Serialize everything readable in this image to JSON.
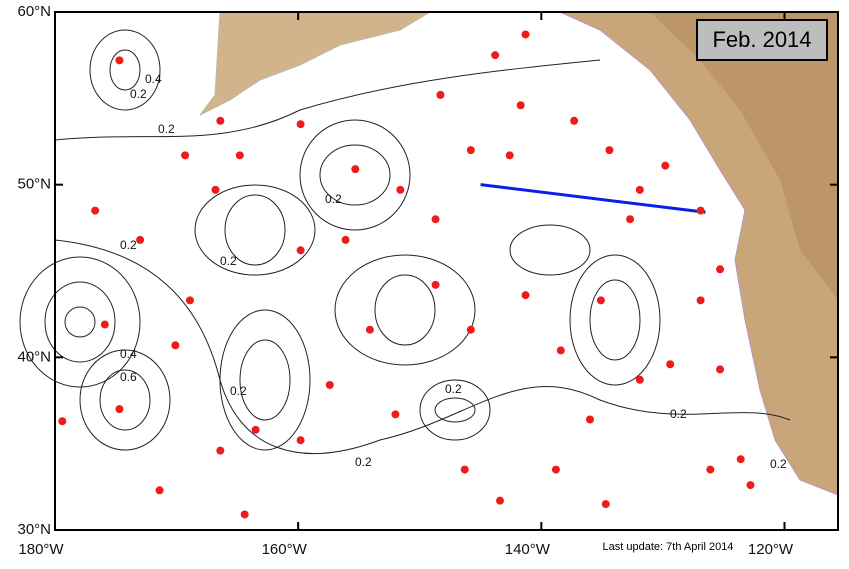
{
  "map": {
    "title": "Feb. 2014",
    "footer": "Last update: 7th April 2014",
    "xlim": [
      -180,
      -115.6
    ],
    "ylim": [
      30,
      60
    ],
    "xticks": [
      {
        "value": -180,
        "label": "180°W"
      },
      {
        "value": -160,
        "label": "160°W"
      },
      {
        "value": -140,
        "label": "140°W"
      },
      {
        "value": -120,
        "label": "120°W"
      }
    ],
    "yticks": [
      {
        "value": 30,
        "label": "30°N"
      },
      {
        "value": 40,
        "label": "40°N"
      },
      {
        "value": 50,
        "label": "50°N"
      },
      {
        "value": 60,
        "label": "60°N"
      }
    ],
    "contour_labels": [
      "0.2",
      "0.4",
      "0.2",
      "0.2",
      "0.2",
      "0.2",
      "0.2",
      "0.4",
      "0.6",
      "0.2",
      "0.2",
      "0.2",
      "0.2"
    ],
    "section": {
      "color": "#0a1eea",
      "lon": [
        -145,
        -126.5
      ],
      "lat": [
        50,
        48.4
      ]
    },
    "floats": {
      "color": "#ee1b1b",
      "lon": [
        -174.7,
        -169.3,
        -166.8,
        -164.8,
        -159.8,
        -155.3,
        -148.3,
        -143.8,
        -141.3,
        -141.7,
        -145.8,
        -142.6,
        -137.3,
        -134.4,
        -129.8,
        -131.9,
        -126.9,
        -176.7,
        -173.0,
        -168.9,
        -175.9,
        -170.1,
        -174.7,
        -179.4,
        -171.4,
        -166.4,
        -164.4,
        -159.8,
        -156.1,
        -157.4,
        -154.1,
        -159.8,
        -152.0,
        -148.7,
        -145.8,
        -146.3,
        -143.4,
        -141.3,
        -138.4,
        -135.1,
        -136.0,
        -131.9,
        -129.4,
        -126.9,
        -125.3,
        -126.1,
        -123.6,
        -122.8,
        -134.7,
        -138.8,
        -132.7,
        -125.3,
        -148.7,
        -163.5,
        -166.4,
        -151.6
      ],
      "lat": [
        57.2,
        51.7,
        49.7,
        51.7,
        53.5,
        50.9,
        55.2,
        57.5,
        58.7,
        54.6,
        52.0,
        51.7,
        53.7,
        52.0,
        51.1,
        49.7,
        48.5,
        48.5,
        46.8,
        43.3,
        41.9,
        40.7,
        37.0,
        36.3,
        32.3,
        34.6,
        30.9,
        46.2,
        46.8,
        38.4,
        41.6,
        35.2,
        36.7,
        44.2,
        41.6,
        33.5,
        31.7,
        43.6,
        40.4,
        43.3,
        36.4,
        38.7,
        39.6,
        43.3,
        39.3,
        33.5,
        34.1,
        32.6,
        31.5,
        33.5,
        48.0,
        45.1,
        48.0,
        35.8,
        53.7,
        49.7
      ]
    }
  }
}
